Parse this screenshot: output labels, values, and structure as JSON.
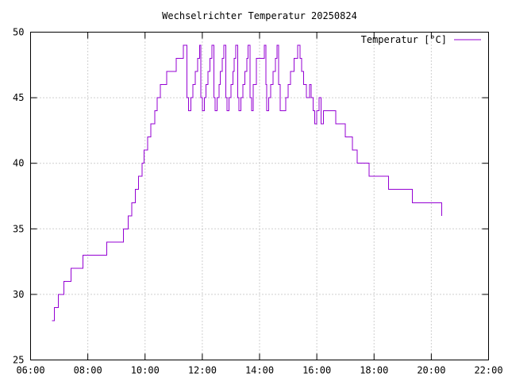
{
  "chart_data": {
    "type": "line",
    "title": "Wechselrichter Temperatur 20250824",
    "xlabel": "",
    "ylabel": "",
    "x_ticks": [
      "06:00",
      "08:00",
      "10:00",
      "12:00",
      "14:00",
      "16:00",
      "18:00",
      "20:00",
      "22:00"
    ],
    "x_range_hours": [
      6,
      22
    ],
    "y_ticks": [
      25,
      30,
      35,
      40,
      45,
      50
    ],
    "ylim": [
      25,
      50
    ],
    "grid": true,
    "legend_position": "top-right",
    "colors": {
      "series": "#9400d3",
      "grid": "#a0a0a0",
      "axes": "#000000"
    },
    "series": [
      {
        "name": "Temperatur [°C]",
        "step": true,
        "points": [
          [
            "06:45",
            28
          ],
          [
            "06:50",
            29
          ],
          [
            "06:58",
            30
          ],
          [
            "07:10",
            31
          ],
          [
            "07:25",
            32
          ],
          [
            "07:50",
            33
          ],
          [
            "08:40",
            34
          ],
          [
            "09:15",
            35
          ],
          [
            "09:25",
            36
          ],
          [
            "09:32",
            37
          ],
          [
            "09:40",
            38
          ],
          [
            "09:46",
            39
          ],
          [
            "09:54",
            40
          ],
          [
            "09:58",
            41
          ],
          [
            "10:05",
            42
          ],
          [
            "10:12",
            43
          ],
          [
            "10:20",
            44
          ],
          [
            "10:25",
            45
          ],
          [
            "10:32",
            46
          ],
          [
            "10:45",
            47
          ],
          [
            "11:05",
            48
          ],
          [
            "11:20",
            49
          ],
          [
            "11:28",
            45
          ],
          [
            "11:31",
            44
          ],
          [
            "11:36",
            45
          ],
          [
            "11:40",
            46
          ],
          [
            "11:45",
            47
          ],
          [
            "11:50",
            48
          ],
          [
            "11:54",
            49
          ],
          [
            "11:57",
            45
          ],
          [
            "12:00",
            44
          ],
          [
            "12:04",
            45
          ],
          [
            "12:08",
            46
          ],
          [
            "12:12",
            47
          ],
          [
            "12:16",
            48
          ],
          [
            "12:20",
            49
          ],
          [
            "12:24",
            45
          ],
          [
            "12:27",
            44
          ],
          [
            "12:31",
            45
          ],
          [
            "12:35",
            46
          ],
          [
            "12:38",
            47
          ],
          [
            "12:42",
            48
          ],
          [
            "12:45",
            49
          ],
          [
            "12:49",
            45
          ],
          [
            "12:52",
            44
          ],
          [
            "12:56",
            45
          ],
          [
            "13:00",
            46
          ],
          [
            "13:04",
            47
          ],
          [
            "13:07",
            48
          ],
          [
            "13:10",
            49
          ],
          [
            "13:14",
            45
          ],
          [
            "13:17",
            44
          ],
          [
            "13:21",
            45
          ],
          [
            "13:25",
            46
          ],
          [
            "13:29",
            47
          ],
          [
            "13:33",
            48
          ],
          [
            "13:36",
            49
          ],
          [
            "13:40",
            45
          ],
          [
            "13:43",
            44
          ],
          [
            "13:47",
            46
          ],
          [
            "13:53",
            48
          ],
          [
            "14:10",
            49
          ],
          [
            "14:13",
            46
          ],
          [
            "14:15",
            44
          ],
          [
            "14:19",
            45
          ],
          [
            "14:23",
            46
          ],
          [
            "14:28",
            47
          ],
          [
            "14:33",
            48
          ],
          [
            "14:37",
            49
          ],
          [
            "14:40",
            46
          ],
          [
            "14:43",
            44
          ],
          [
            "14:55",
            45
          ],
          [
            "15:00",
            46
          ],
          [
            "15:05",
            47
          ],
          [
            "15:12",
            48
          ],
          [
            "15:20",
            49
          ],
          [
            "15:25",
            48
          ],
          [
            "15:28",
            47
          ],
          [
            "15:32",
            46
          ],
          [
            "15:38",
            45
          ],
          [
            "15:45",
            46
          ],
          [
            "15:48",
            45
          ],
          [
            "15:52",
            44
          ],
          [
            "15:56",
            43
          ],
          [
            "16:00",
            44
          ],
          [
            "16:05",
            45
          ],
          [
            "16:09",
            43
          ],
          [
            "16:14",
            44
          ],
          [
            "16:40",
            43
          ],
          [
            "17:00",
            42
          ],
          [
            "17:15",
            41
          ],
          [
            "17:25",
            40
          ],
          [
            "17:50",
            39
          ],
          [
            "18:30",
            38
          ],
          [
            "19:20",
            37
          ],
          [
            "20:22",
            36
          ],
          [
            "20:22",
            36
          ]
        ]
      }
    ]
  }
}
